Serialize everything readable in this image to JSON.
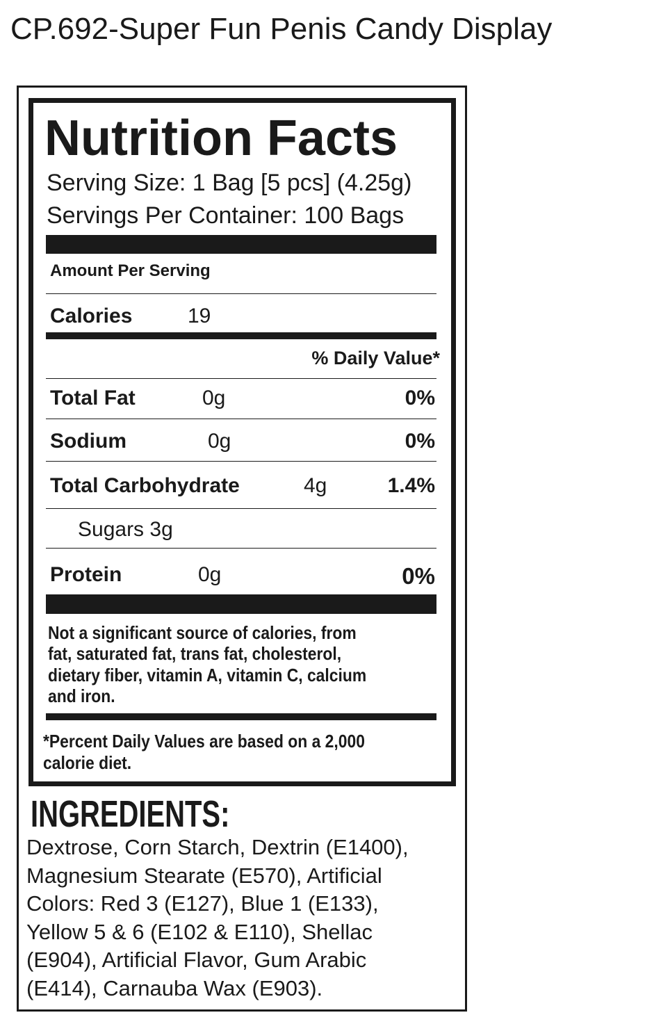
{
  "page_title": "CP.692-Super Fun Penis Candy Display",
  "nutrition": {
    "heading": "Nutrition Facts",
    "serving_size": "Serving Size: 1 Bag [5 pcs] (4.25g)",
    "servings_per_container": "Servings Per Container: 100 Bags",
    "amount_per_serving": "Amount Per Serving",
    "calories_label": "Calories",
    "calories_value": "19",
    "daily_value_header": "% Daily Value*",
    "rows": [
      {
        "label": "Total Fat",
        "amount": "0g",
        "dv": "0%"
      },
      {
        "label": "Sodium",
        "amount": "0g",
        "dv": "0%"
      },
      {
        "label": "Total Carbohydrate",
        "amount": "4g",
        "dv": "1.4%"
      },
      {
        "label": "Sugars 3g"
      },
      {
        "label": "Protein",
        "amount": "0g",
        "dv": "0%"
      }
    ],
    "not_significant_lines": [
      "Not a significant source of calories, from",
      "fat, saturated fat, trans fat, cholesterol,",
      "dietary fiber, vitamin A, vitamin C, calcium",
      "and iron."
    ],
    "footnote_lines": [
      "*Percent Daily Values are based on a 2,000",
      "calorie diet."
    ]
  },
  "ingredients": {
    "heading": "INGREDIENTS:",
    "lines": [
      "Dextrose, Corn Starch, Dextrin (E1400),",
      "Magnesium Stearate (E570), Artificial",
      "Colors: Red 3 (E127), Blue 1 (E133),",
      "Yellow 5 & 6 (E102 & E110), Shellac",
      "(E904), Artificial Flavor, Gum Arabic",
      "(E414), Carnauba Wax (E903)."
    ]
  }
}
